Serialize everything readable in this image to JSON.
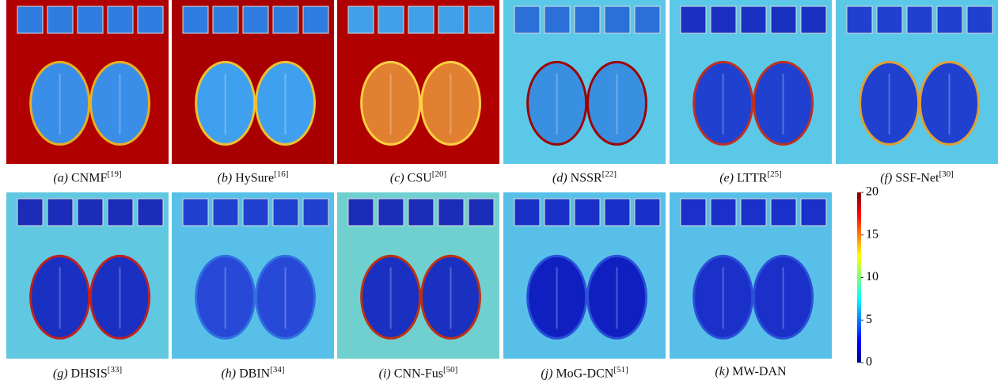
{
  "panels": [
    {
      "letter": "(a)",
      "method": "CNMF",
      "ref": "[19]"
    },
    {
      "letter": "(b)",
      "method": "HySure",
      "ref": "[16]"
    },
    {
      "letter": "(c)",
      "method": "CSU",
      "ref": "[20]"
    },
    {
      "letter": "(d)",
      "method": "NSSR",
      "ref": "[22]"
    },
    {
      "letter": "(e)",
      "method": "LTTR",
      "ref": "[25]"
    },
    {
      "letter": "(f)",
      "method": "SSF-Net",
      "ref": "[30]"
    },
    {
      "letter": "(g)",
      "method": "DHSIS",
      "ref": "[33]"
    },
    {
      "letter": "(h)",
      "method": "DBIN",
      "ref": "[34]"
    },
    {
      "letter": "(i)",
      "method": "CNN-Fus",
      "ref": "[50]"
    },
    {
      "letter": "(j)",
      "method": "MoG-DCN",
      "ref": "[51]"
    },
    {
      "letter": "(k)",
      "method": "MW-DAN"
    }
  ],
  "colorbar": {
    "lim": [
      0,
      20
    ],
    "ticks": [
      0,
      5,
      10,
      15,
      20
    ]
  }
}
